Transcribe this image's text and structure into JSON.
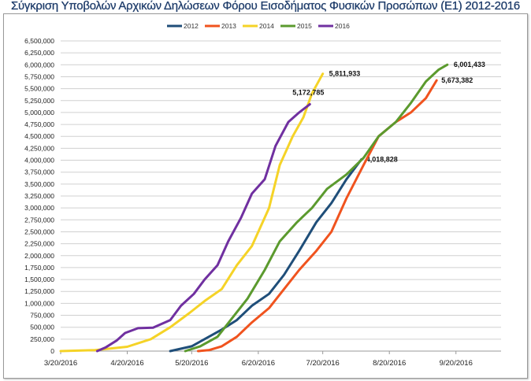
{
  "chart_data": {
    "type": "line",
    "title": "Σύγκριση Υποβολών Αρχικών Δηλώσεων Φόρου Εισοδήματος Φυσικών Προσώπων (Ε1) 2012-2016",
    "xlabel": "",
    "ylabel": "",
    "ylim": [
      0,
      6500000
    ],
    "y_ticks": [
      "0",
      "250,000",
      "500,000",
      "750,000",
      "1,000,000",
      "1,250,000",
      "1,500,000",
      "1,750,000",
      "2,000,000",
      "2,250,000",
      "2,500,000",
      "2,750,000",
      "3,000,000",
      "3,250,000",
      "3,500,000",
      "3,750,000",
      "4,000,000",
      "4,250,000",
      "4,500,000",
      "4,750,000",
      "5,000,000",
      "5,250,000",
      "5,500,000",
      "5,750,000",
      "6,000,000",
      "6,250,000",
      "6,500,000"
    ],
    "x_ticks": [
      "3/20/2016",
      "4/20/2016",
      "5/20/2016",
      "6/20/2016",
      "7/20/2016",
      "8/20/2016",
      "9/20/2016"
    ],
    "xlim": [
      "3/20/2016",
      "10/11/2016"
    ],
    "grid": "horizontal",
    "legend": "top-center",
    "series": [
      {
        "name": "2012",
        "color": "#1f4e79",
        "end_label": "4,018,828",
        "points": [
          [
            "5/10/2016",
            0
          ],
          [
            "5/20/2016",
            100000
          ],
          [
            "5/26/2016",
            250000
          ],
          [
            "6/3/2016",
            450000
          ],
          [
            "6/10/2016",
            650000
          ],
          [
            "6/17/2016",
            950000
          ],
          [
            "6/25/2016",
            1200000
          ],
          [
            "7/2/2016",
            1600000
          ],
          [
            "7/9/2016",
            2100000
          ],
          [
            "7/17/2016",
            2700000
          ],
          [
            "7/24/2016",
            3100000
          ],
          [
            "7/31/2016",
            3600000
          ],
          [
            "8/7/2016",
            4018828
          ]
        ]
      },
      {
        "name": "2013",
        "color": "#f0531e",
        "end_label": "5,673,382",
        "points": [
          [
            "5/23/2016",
            0
          ],
          [
            "5/28/2016",
            20000
          ],
          [
            "6/3/2016",
            100000
          ],
          [
            "6/10/2016",
            300000
          ],
          [
            "6/17/2016",
            600000
          ],
          [
            "6/25/2016",
            900000
          ],
          [
            "7/2/2016",
            1300000
          ],
          [
            "7/9/2016",
            1700000
          ],
          [
            "7/17/2016",
            2100000
          ],
          [
            "7/24/2016",
            2500000
          ],
          [
            "7/31/2016",
            3200000
          ],
          [
            "8/8/2016",
            3900000
          ],
          [
            "8/15/2016",
            4500000
          ],
          [
            "8/23/2016",
            4800000
          ],
          [
            "8/30/2016",
            5000000
          ],
          [
            "9/6/2016",
            5300000
          ],
          [
            "9/11/2016",
            5673382
          ]
        ]
      },
      {
        "name": "2014",
        "color": "#f5d327",
        "end_label": "5,811,933",
        "points": [
          [
            "3/20/2016",
            0
          ],
          [
            "4/5/2016",
            20000
          ],
          [
            "4/20/2016",
            90000
          ],
          [
            "5/1/2016",
            250000
          ],
          [
            "5/10/2016",
            500000
          ],
          [
            "5/19/2016",
            800000
          ],
          [
            "5/26/2016",
            1050000
          ],
          [
            "6/3/2016",
            1300000
          ],
          [
            "6/10/2016",
            1800000
          ],
          [
            "6/17/2016",
            2200000
          ],
          [
            "6/25/2016",
            3000000
          ],
          [
            "6/30/2016",
            3900000
          ],
          [
            "7/6/2016",
            4500000
          ],
          [
            "7/11/2016",
            4900000
          ],
          [
            "7/15/2016",
            5400000
          ],
          [
            "7/20/2016",
            5811933
          ]
        ]
      },
      {
        "name": "2015",
        "color": "#5b9a2e",
        "end_label": "6,001,433",
        "points": [
          [
            "5/17/2016",
            0
          ],
          [
            "5/24/2016",
            100000
          ],
          [
            "6/1/2016",
            300000
          ],
          [
            "6/8/2016",
            700000
          ],
          [
            "6/15/2016",
            1100000
          ],
          [
            "6/23/2016",
            1700000
          ],
          [
            "6/30/2016",
            2300000
          ],
          [
            "7/8/2016",
            2700000
          ],
          [
            "7/15/2016",
            3000000
          ],
          [
            "7/22/2016",
            3400000
          ],
          [
            "7/31/2016",
            3700000
          ],
          [
            "8/8/2016",
            4050000
          ],
          [
            "8/15/2016",
            4500000
          ],
          [
            "8/23/2016",
            4800000
          ],
          [
            "8/30/2016",
            5200000
          ],
          [
            "9/6/2016",
            5650000
          ],
          [
            "9/12/2016",
            5900000
          ],
          [
            "9/16/2016",
            6001433
          ]
        ]
      },
      {
        "name": "2016",
        "color": "#7030a0",
        "end_label": "5,172,785",
        "points": [
          [
            "4/6/2016",
            0
          ],
          [
            "4/10/2016",
            80000
          ],
          [
            "4/15/2016",
            220000
          ],
          [
            "4/19/2016",
            380000
          ],
          [
            "4/25/2016",
            480000
          ],
          [
            "5/2/2016",
            490000
          ],
          [
            "5/10/2016",
            650000
          ],
          [
            "5/15/2016",
            950000
          ],
          [
            "5/21/2016",
            1200000
          ],
          [
            "5/26/2016",
            1500000
          ],
          [
            "6/1/2016",
            1800000
          ],
          [
            "6/6/2016",
            2300000
          ],
          [
            "6/12/2016",
            2800000
          ],
          [
            "6/17/2016",
            3300000
          ],
          [
            "6/23/2016",
            3600000
          ],
          [
            "6/28/2016",
            4300000
          ],
          [
            "7/4/2016",
            4800000
          ],
          [
            "7/9/2016",
            5000000
          ],
          [
            "7/14/2016",
            5172785
          ]
        ]
      }
    ]
  }
}
